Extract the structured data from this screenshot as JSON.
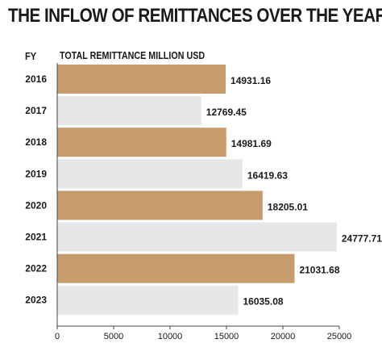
{
  "title": "THE INFLOW OF REMITTANCES OVER THE YEARS",
  "chart_data": {
    "type": "bar",
    "orientation": "horizontal",
    "title": "THE INFLOW OF REMITTANCES OVER THE YEARS",
    "category_header": "FY",
    "series_header": "TOTAL REMITTANCE MILLION USD",
    "categories": [
      "2016",
      "2017",
      "2018",
      "2019",
      "2020",
      "2021",
      "2022",
      "2023"
    ],
    "values": [
      14931.16,
      12769.45,
      14981.69,
      16419.63,
      18205.01,
      24777.71,
      21031.68,
      16035.08
    ],
    "value_labels": [
      "14931.16",
      "12769.45",
      "14981.69",
      "16419.63",
      "18205.01",
      "24777.71",
      "21031.68",
      "16035.08"
    ],
    "xlim": [
      0,
      25000
    ],
    "xticks": [
      0,
      5000,
      10000,
      15000,
      20000,
      25000
    ],
    "xtick_labels": [
      "0",
      "5000",
      "10000",
      "15000",
      "20000",
      "25000"
    ],
    "grid": false,
    "colors": {
      "bar_primary": "#c69c6d",
      "bar_secondary": "#e6e7e9",
      "text": "#1a1a1a",
      "axis": "#444444"
    }
  }
}
